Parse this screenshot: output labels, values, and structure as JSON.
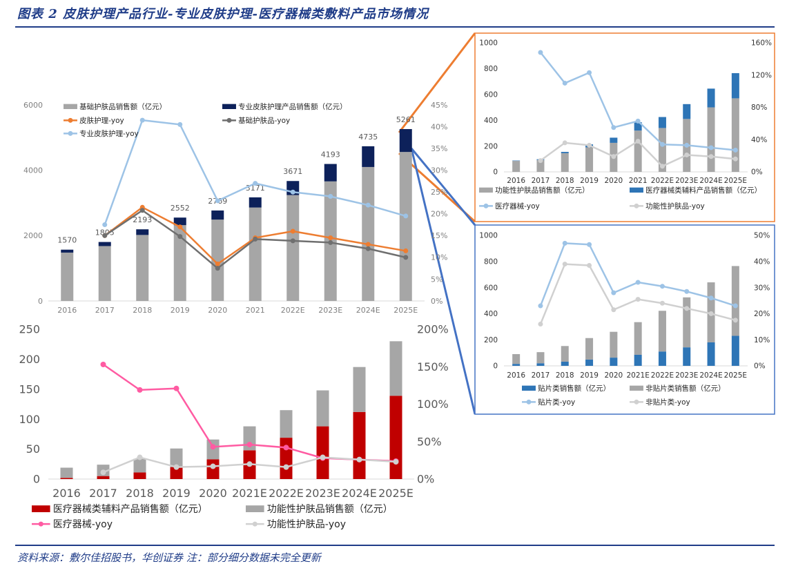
{
  "figure": {
    "title": "图表 2   皮肤护理产品行业-专业皮肤护理-医疗器械类敷料产品市场情况",
    "source": "资料来源：敷尔佳招股书，华创证券   注：部分细分数据未完全更新"
  },
  "colors": {
    "gray_bar": "#a6a6a6",
    "navy_bar": "#0d215a",
    "orange_line": "#ed7d31",
    "darkgray_line": "#6f6f6f",
    "lightblue_line": "#9dc3e6",
    "red_bar": "#c00000",
    "pink_line": "#ff5ba2",
    "lightgray_line": "#d0d0d0",
    "blue_bar": "#2e75b6",
    "orange_frame": "#ed7d31",
    "blue_frame": "#4472c4"
  },
  "chart_data": [
    {
      "type": "bar",
      "stacked": true,
      "categories": [
        "2016",
        "2017",
        "2018",
        "2019",
        "2020",
        "2021",
        "2022E",
        "2023E",
        "2024E",
        "2025E"
      ],
      "series": [
        {
          "name": "基础护肤品销售额（亿元）",
          "kind": "bar",
          "axis": "left",
          "values": [
            1480,
            1680,
            2020,
            2320,
            2490,
            2860,
            3240,
            3660,
            4100,
            4560
          ]
        },
        {
          "name": "专业皮肤护理产品销售额（亿元）",
          "kind": "bar",
          "axis": "left",
          "values": [
            90,
            125,
            173,
            232,
            279,
            311,
            431,
            533,
            635,
            701
          ]
        },
        {
          "name": "皮肤护理-yoy",
          "kind": "line",
          "axis": "right",
          "values": [
            null,
            15,
            21.5,
            17,
            8.5,
            14.5,
            16,
            14.5,
            13,
            11.5
          ]
        },
        {
          "name": "基础护肤品-yoy",
          "kind": "line",
          "axis": "right",
          "values": [
            null,
            15,
            20.8,
            14.8,
            7.5,
            14.2,
            13.8,
            13.4,
            12,
            10
          ]
        },
        {
          "name": "专业皮肤护理-yoy",
          "kind": "line",
          "axis": "right",
          "values": [
            null,
            17.5,
            41.5,
            40.5,
            23,
            27,
            25,
            24,
            22,
            19.5
          ]
        }
      ],
      "total_labels": [
        "1570",
        "1805",
        "2193",
        "2552",
        "2769",
        "3171",
        "3671",
        "4193",
        "4735",
        "5261"
      ],
      "ylim": [
        0,
        6000
      ],
      "yticks": [
        "0",
        "2000",
        "4000",
        "6000"
      ],
      "y2lim": [
        0,
        45
      ],
      "y2ticks": [
        "0%",
        "5%",
        "10%",
        "15%",
        "20%",
        "25%",
        "30%",
        "35%",
        "40%",
        "45%"
      ],
      "legend": "top-left"
    },
    {
      "type": "bar",
      "stacked": true,
      "categories": [
        "2016",
        "2017",
        "2018",
        "2019",
        "2020",
        "2021E",
        "2022E",
        "2023E",
        "2024E",
        "2025E"
      ],
      "series": [
        {
          "name": "医疗器械类辅料产品销售额（亿元）",
          "kind": "bar",
          "axis": "left",
          "values": [
            2,
            5,
            11,
            20,
            33,
            48,
            69,
            88,
            112,
            139
          ]
        },
        {
          "name": "功能性护肤品销售额（亿元）",
          "kind": "bar",
          "axis": "left",
          "values": [
            17,
            19,
            23,
            31,
            33,
            40,
            46,
            60,
            75,
            91
          ]
        },
        {
          "name": "医疗器械-yoy",
          "kind": "line",
          "axis": "right",
          "values": [
            null,
            153,
            119,
            121,
            43,
            46,
            42,
            28,
            26,
            24
          ]
        },
        {
          "name": "功能性护肤品-yoy",
          "kind": "line",
          "axis": "right",
          "values": [
            null,
            9,
            29,
            16,
            17,
            20,
            16,
            29,
            26,
            23
          ]
        }
      ],
      "ylim": [
        0,
        250
      ],
      "yticks": [
        "0",
        "50",
        "100",
        "150",
        "200",
        "250"
      ],
      "y2lim": [
        0,
        200
      ],
      "y2ticks": [
        "0%",
        "50%",
        "100%",
        "150%",
        "200%"
      ],
      "legend": "bottom"
    },
    {
      "type": "bar",
      "stacked": true,
      "categories": [
        "2016",
        "2017",
        "2018",
        "2019",
        "2020",
        "2021",
        "2022E",
        "2023E",
        "2024E",
        "2025E"
      ],
      "series": [
        {
          "name": "功能性护肤品销售额（亿元）",
          "kind": "bar",
          "axis": "left",
          "values": [
            85,
            92,
            145,
            190,
            225,
            320,
            340,
            410,
            500,
            570
          ]
        },
        {
          "name": "医疗器械类辅料产品销售额（亿元）",
          "kind": "bar",
          "axis": "left",
          "values": [
            3,
            6,
            10,
            23,
            40,
            65,
            85,
            115,
            145,
            195
          ]
        },
        {
          "name": "医疗器械-yoy",
          "kind": "line",
          "axis": "right",
          "values": [
            null,
            148,
            110,
            123,
            55,
            63,
            34,
            33,
            30,
            27
          ]
        },
        {
          "name": "功能性护肤品-yoy",
          "kind": "line",
          "axis": "right",
          "values": [
            null,
            14,
            36,
            33,
            19,
            38,
            7,
            21,
            19,
            16
          ]
        }
      ],
      "ylim": [
        0,
        1000
      ],
      "yticks": [
        "0",
        "200",
        "400",
        "600",
        "800",
        "1000"
      ],
      "y2lim": [
        0,
        160
      ],
      "y2ticks": [
        "0%",
        "40%",
        "80%",
        "120%",
        "160%"
      ],
      "legend": "bottom"
    },
    {
      "type": "bar",
      "stacked": true,
      "categories": [
        "2016",
        "2017",
        "2018",
        "2019",
        "2020",
        "2021E",
        "2022E",
        "2023E",
        "2024E",
        "2025E"
      ],
      "series": [
        {
          "name": "贴片类销售额（亿元）",
          "kind": "bar",
          "axis": "left",
          "values": [
            15,
            20,
            32,
            48,
            63,
            85,
            110,
            142,
            180,
            230
          ]
        },
        {
          "name": "非贴片类销售额（亿元）",
          "kind": "bar",
          "axis": "left",
          "values": [
            75,
            85,
            120,
            165,
            198,
            250,
            312,
            383,
            460,
            535
          ]
        },
        {
          "name": "贴片类-yoy",
          "kind": "line",
          "axis": "right",
          "values": [
            null,
            23,
            47,
            46.5,
            28,
            32,
            30.5,
            28.5,
            26,
            23
          ]
        },
        {
          "name": "非贴片类-yoy",
          "kind": "line",
          "axis": "right",
          "values": [
            null,
            16,
            39,
            38.5,
            21.5,
            25.5,
            24,
            22,
            20,
            17.5
          ]
        }
      ],
      "ylim": [
        0,
        1000
      ],
      "yticks": [
        "0",
        "200",
        "400",
        "600",
        "800",
        "1000"
      ],
      "y2lim": [
        0,
        50
      ],
      "y2ticks": [
        "0%",
        "10%",
        "20%",
        "30%",
        "40%",
        "50%"
      ],
      "legend": "bottom"
    }
  ]
}
